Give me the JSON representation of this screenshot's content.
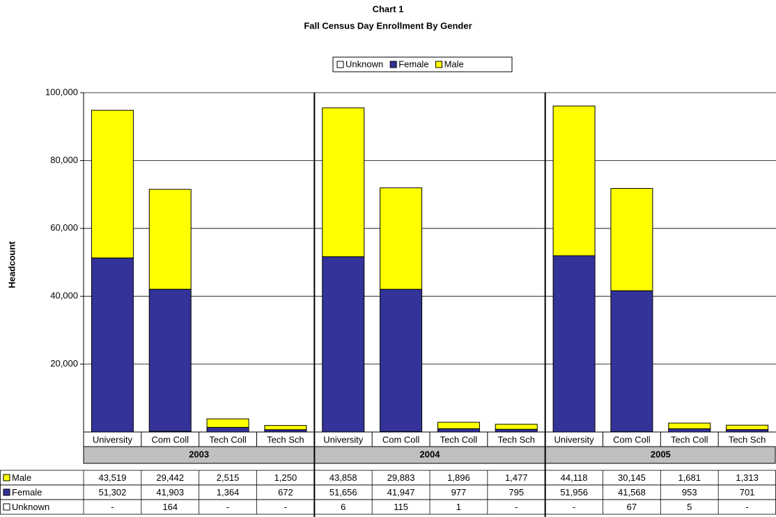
{
  "chart_data": {
    "type": "bar",
    "stacked": true,
    "title": "Chart 1",
    "subtitle": "Fall Census Day Enrollment By Gender",
    "y_label": "Headcount",
    "categories": [
      "University",
      "Com Coll",
      "Tech Coll",
      "Tech Sch",
      "University",
      "Com Coll",
      "Tech Coll",
      "Tech Sch",
      "University",
      "Com Coll",
      "Tech Coll",
      "Tech Sch"
    ],
    "groups": [
      "2003",
      "2004",
      "2005"
    ],
    "series": [
      {
        "name": "Unknown",
        "color": "#ffffff",
        "values": [
          0,
          164,
          0,
          0,
          6,
          115,
          1,
          0,
          0,
          67,
          5,
          0
        ],
        "value_labels": [
          "-",
          "164",
          "-",
          "-",
          "6",
          "115",
          "1",
          "-",
          "-",
          "67",
          "5",
          "-"
        ]
      },
      {
        "name": "Female",
        "color": "#333399",
        "values": [
          51302,
          41903,
          1364,
          672,
          51656,
          41947,
          977,
          795,
          51956,
          41568,
          953,
          701
        ],
        "value_labels": [
          "51,302",
          "41,903",
          "1,364",
          "672",
          "51,656",
          "41,947",
          "977",
          "795",
          "51,956",
          "41,568",
          "953",
          "701"
        ]
      },
      {
        "name": "Male",
        "color": "#ffff00",
        "values": [
          43519,
          29442,
          2515,
          1250,
          43858,
          29883,
          1896,
          1477,
          44118,
          30145,
          1681,
          1313
        ],
        "value_labels": [
          "43,519",
          "29,442",
          "2,515",
          "1,250",
          "43,858",
          "29,883",
          "1,896",
          "1,477",
          "44,118",
          "30,145",
          "1,681",
          "1,313"
        ]
      }
    ],
    "ylim": [
      0,
      100000
    ],
    "yticks": [
      {
        "value": 20000,
        "label": "20,000"
      },
      {
        "value": 40000,
        "label": "40,000"
      },
      {
        "value": 60000,
        "label": "60,000"
      },
      {
        "value": 80000,
        "label": "80,000"
      },
      {
        "value": 100000,
        "label": "100,000"
      }
    ],
    "grid": true,
    "legend": "top"
  }
}
